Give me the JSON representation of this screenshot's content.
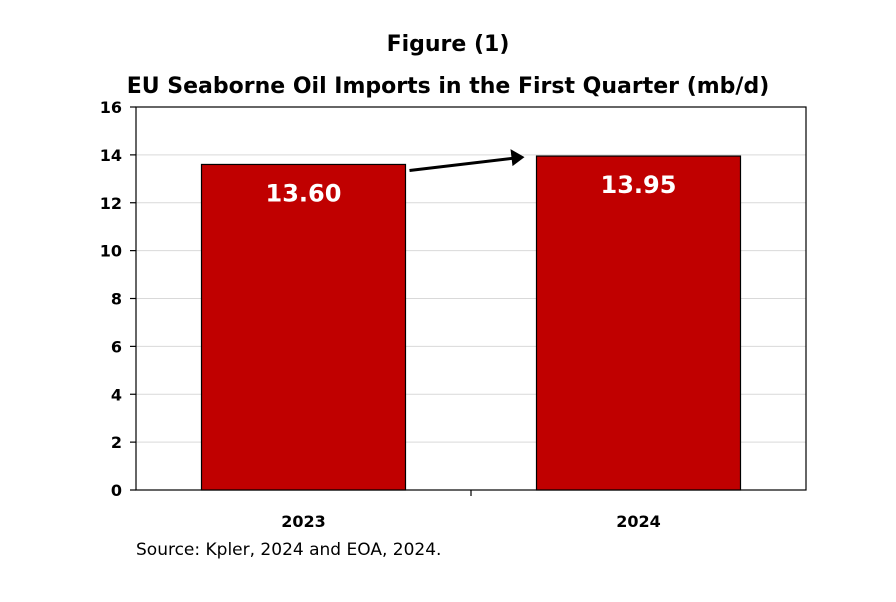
{
  "figure_label": "Figure (1)",
  "chart_data": {
    "type": "bar",
    "title": "EU Seaborne Oil Imports in the First Quarter (mb/d)",
    "categories": [
      "2023",
      "2024"
    ],
    "values": [
      13.6,
      13.95
    ],
    "value_labels": [
      "13.60",
      "13.95"
    ],
    "ylim": [
      0,
      16
    ],
    "yticks": [
      0,
      2,
      4,
      6,
      8,
      10,
      12,
      14,
      16
    ],
    "grid": true,
    "bar_color": "#c00000",
    "annotation": "arrow from 2023 bar to 2024 bar"
  },
  "source": "Source: Kpler, 2024 and EOA, 2024."
}
